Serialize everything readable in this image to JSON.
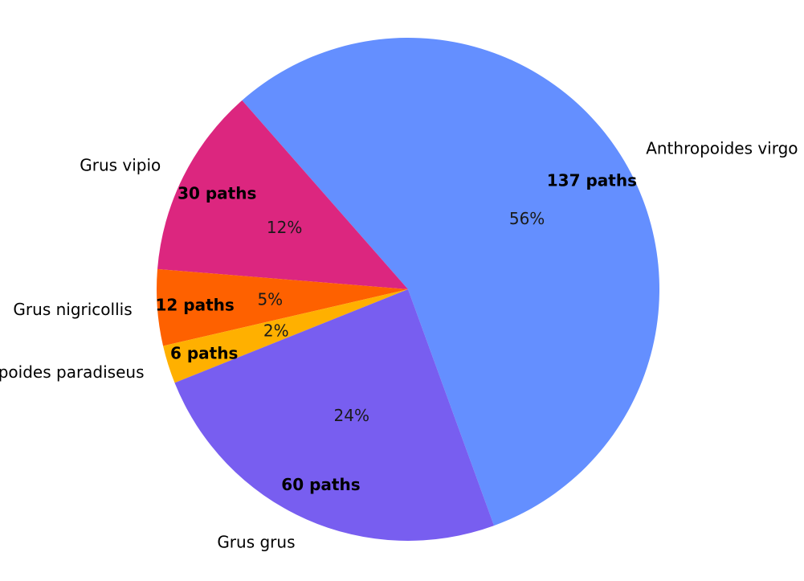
{
  "chart_data": {
    "type": "pie",
    "title": "",
    "slices": [
      {
        "label": "Anthropoides virgo",
        "value": 137,
        "value_label": "137 paths",
        "percent_label": "56%",
        "color": "#648FFF"
      },
      {
        "label": "Grus vipio",
        "value": 30,
        "value_label": "30 paths",
        "percent_label": "12%",
        "color": "#DC267F"
      },
      {
        "label": "Grus nigricollis",
        "value": 12,
        "value_label": "12 paths",
        "percent_label": "5%",
        "color": "#FE6100"
      },
      {
        "label": "Anthropoides paradiseus",
        "value": 6,
        "value_label": "6 paths",
        "percent_label": "2%",
        "color": "#FFB000"
      },
      {
        "label": "Grus grus",
        "value": 60,
        "value_label": "60 paths",
        "percent_label": "24%",
        "color": "#785EF0"
      }
    ],
    "start_angle_deg": -70,
    "direction": "counterclockwise"
  }
}
